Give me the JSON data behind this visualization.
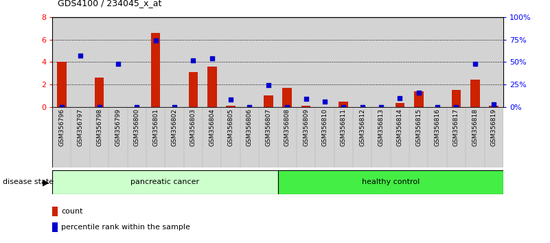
{
  "title": "GDS4100 / 234045_x_at",
  "samples": [
    "GSM356796",
    "GSM356797",
    "GSM356798",
    "GSM356799",
    "GSM356800",
    "GSM356801",
    "GSM356802",
    "GSM356803",
    "GSM356804",
    "GSM356805",
    "GSM356806",
    "GSM356807",
    "GSM356808",
    "GSM356809",
    "GSM356810",
    "GSM356811",
    "GSM356812",
    "GSM356813",
    "GSM356814",
    "GSM356815",
    "GSM356816",
    "GSM356817",
    "GSM356818",
    "GSM356819"
  ],
  "count_values": [
    4.0,
    0.0,
    2.6,
    0.0,
    0.0,
    6.6,
    0.0,
    3.1,
    3.6,
    0.1,
    0.0,
    1.05,
    1.7,
    0.1,
    0.0,
    0.5,
    0.0,
    0.0,
    0.35,
    1.4,
    0.0,
    1.5,
    2.45,
    0.1
  ],
  "percentile_values": [
    0.0,
    57.0,
    0.0,
    48.0,
    0.0,
    74.0,
    0.0,
    52.0,
    54.0,
    8.0,
    0.0,
    24.0,
    0.0,
    9.0,
    6.0,
    0.0,
    0.0,
    0.0,
    10.0,
    16.0,
    0.0,
    0.0,
    48.0,
    3.0
  ],
  "group_labels": [
    "pancreatic cancer",
    "healthy control"
  ],
  "pc_count": 12,
  "hc_count": 12,
  "ylim_left": [
    0,
    8
  ],
  "ylim_right": [
    0,
    100
  ],
  "yticks_left": [
    0,
    2,
    4,
    6,
    8
  ],
  "yticks_right": [
    0,
    25,
    50,
    75,
    100
  ],
  "bar_color": "#CC2200",
  "dot_color": "#0000CC",
  "bg_color": "#D3D3D3",
  "light_green": "#CCFFCC",
  "bright_green": "#44EE44",
  "disease_state_label": "disease state",
  "legend_count_label": "count",
  "legend_percentile_label": "percentile rank within the sample"
}
